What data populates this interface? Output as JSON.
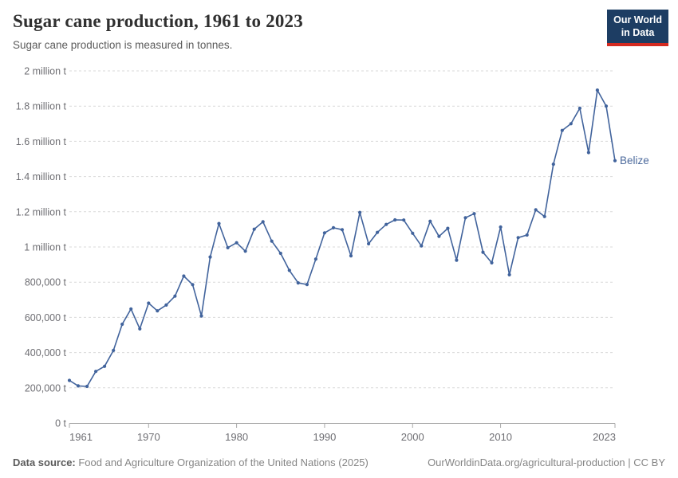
{
  "header": {
    "title": "Sugar cane production, 1961 to 2023",
    "subtitle": "Sugar cane production is measured in tonnes."
  },
  "logo": {
    "line1": "Our World",
    "line2": "in Data"
  },
  "chart_data": {
    "type": "line",
    "title": "Sugar cane production, 1961 to 2023",
    "unit": "tonnes",
    "xlabel": "",
    "ylabel": "",
    "xlim": [
      1961,
      2023
    ],
    "ylim": [
      0,
      2000000
    ],
    "grid": "dashed-horizontal",
    "legend_position": "end-of-line-label",
    "x_ticks": [
      1961,
      1970,
      1980,
      1990,
      2000,
      2010,
      2023
    ],
    "y_ticks": [
      {
        "value": 0,
        "label": "0 t"
      },
      {
        "value": 200000,
        "label": "200,000 t"
      },
      {
        "value": 400000,
        "label": "400,000 t"
      },
      {
        "value": 600000,
        "label": "600,000 t"
      },
      {
        "value": 800000,
        "label": "800,000 t"
      },
      {
        "value": 1000000,
        "label": "1 million t"
      },
      {
        "value": 1200000,
        "label": "1.2 million t"
      },
      {
        "value": 1400000,
        "label": "1.4 million t"
      },
      {
        "value": 1600000,
        "label": "1.6 million t"
      },
      {
        "value": 1800000,
        "label": "1.8 million t"
      },
      {
        "value": 2000000,
        "label": "2 million t"
      }
    ],
    "series": [
      {
        "name": "Belize",
        "color": "#41639c",
        "x": [
          1961,
          1962,
          1963,
          1964,
          1965,
          1966,
          1967,
          1968,
          1969,
          1970,
          1971,
          1972,
          1973,
          1974,
          1975,
          1976,
          1977,
          1978,
          1979,
          1980,
          1981,
          1982,
          1983,
          1984,
          1985,
          1986,
          1987,
          1988,
          1989,
          1990,
          1991,
          1992,
          1993,
          1994,
          1995,
          1996,
          1997,
          1998,
          1999,
          2000,
          2001,
          2002,
          2003,
          2004,
          2005,
          2006,
          2007,
          2008,
          2009,
          2010,
          2011,
          2012,
          2013,
          2014,
          2015,
          2016,
          2017,
          2018,
          2019,
          2020,
          2021,
          2022,
          2023
        ],
        "values": [
          242000,
          211000,
          208000,
          293000,
          322000,
          412000,
          561000,
          648000,
          535000,
          681000,
          637000,
          670000,
          721000,
          835000,
          786000,
          608000,
          943000,
          1133000,
          996000,
          1024000,
          976000,
          1101000,
          1143000,
          1033000,
          964000,
          867000,
          796000,
          787000,
          931000,
          1080000,
          1109000,
          1098000,
          950000,
          1196000,
          1018000,
          1083000,
          1128000,
          1154000,
          1153000,
          1078000,
          1006000,
          1146000,
          1060000,
          1106000,
          925000,
          1166000,
          1189000,
          970000,
          910000,
          1113000,
          842000,
          1053000,
          1068000,
          1211000,
          1173000,
          1470000,
          1662000,
          1700000,
          1788000,
          1536000,
          1891000,
          1800000,
          1490000
        ]
      }
    ]
  },
  "footer": {
    "source_label": "Data source:",
    "source_text": " Food and Agriculture Organization of the United Nations (2025)",
    "right_text": "OurWorldinData.org/agricultural-production | CC BY"
  },
  "colors": {
    "line": "#41639c",
    "entity_label": "#4c6a9c",
    "grid": "#d9d9d9",
    "axis": "#a9a9a9",
    "tick_text": "#6e6e73",
    "logo_navy": "#1d3d63",
    "logo_red": "#d42a20"
  }
}
